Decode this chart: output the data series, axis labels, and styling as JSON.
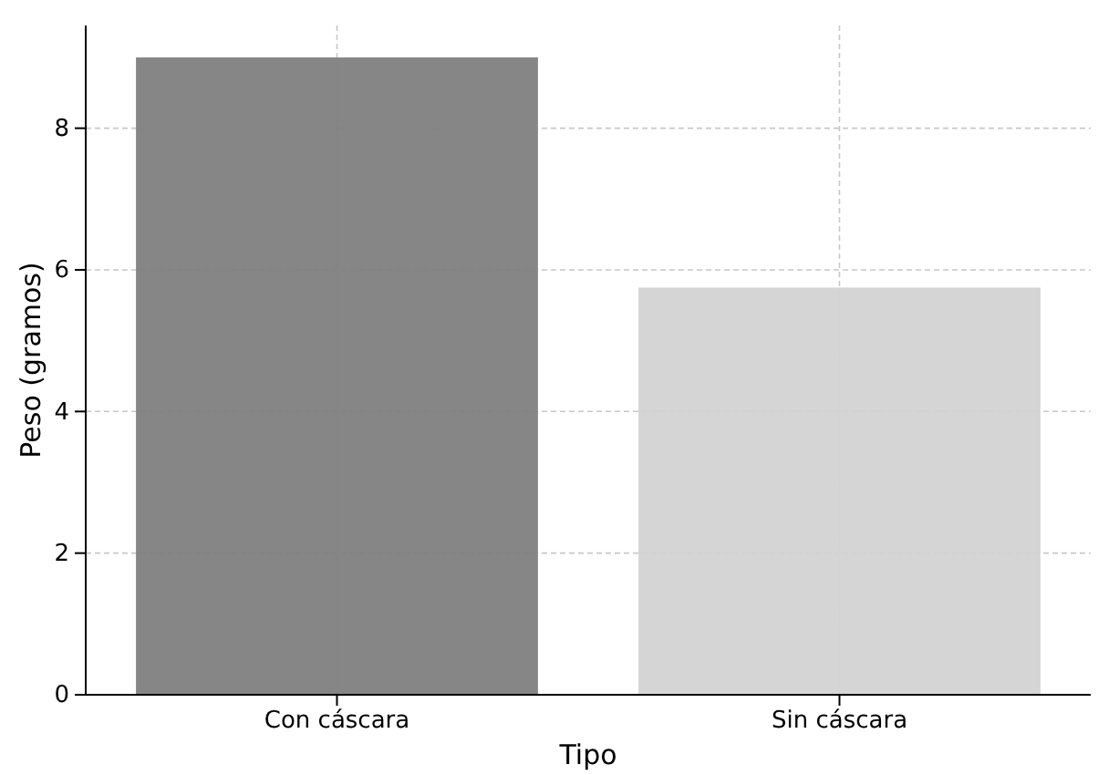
{
  "chart_data": {
    "type": "bar",
    "xlabel": "Tipo",
    "ylabel": "Peso (gramos)",
    "categories": [
      "Con cáscara",
      "Sin cáscara"
    ],
    "values": [
      9.0,
      5.75
    ],
    "colors": [
      "#808080",
      "#d3d3d3"
    ],
    "ylim": [
      0,
      9.45
    ],
    "yticks": [
      0,
      2,
      4,
      6,
      8
    ],
    "grid": true
  }
}
